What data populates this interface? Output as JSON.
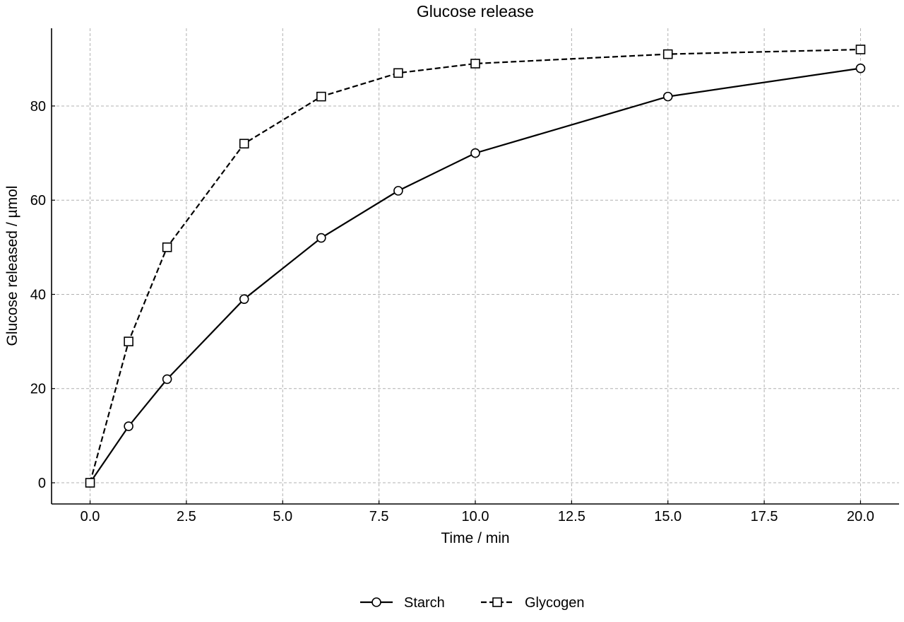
{
  "chart_data": {
    "type": "line",
    "title": "Glucose release",
    "xlabel": "Time / min",
    "ylabel": "Glucose released / µmol",
    "xlim": [
      -1.0,
      21.0
    ],
    "ylim": [
      -4.5,
      96.5
    ],
    "xticks": [
      0.0,
      2.5,
      5.0,
      7.5,
      10.0,
      12.5,
      15.0,
      17.5,
      20.0
    ],
    "xtick_labels": [
      "0.0",
      "2.5",
      "5.0",
      "7.5",
      "10.0",
      "12.5",
      "15.0",
      "17.5",
      "20.0"
    ],
    "yticks": [
      0,
      20,
      40,
      60,
      80
    ],
    "ytick_labels": [
      "0",
      "20",
      "40",
      "60",
      "80"
    ],
    "grid": true,
    "legend_position": "bottom-center",
    "series": [
      {
        "name": "Starch",
        "line_style": "solid",
        "marker": "circle",
        "color": "#000000",
        "x": [
          0,
          1,
          2,
          4,
          6,
          8,
          10,
          15,
          20
        ],
        "y": [
          0,
          12,
          22,
          39,
          52,
          62,
          70,
          82,
          88
        ]
      },
      {
        "name": "Glycogen",
        "line_style": "dashed",
        "marker": "square",
        "color": "#000000",
        "x": [
          0,
          1,
          2,
          4,
          6,
          8,
          10,
          15,
          20
        ],
        "y": [
          0,
          30,
          50,
          72,
          82,
          87,
          89,
          91,
          92
        ]
      }
    ]
  }
}
